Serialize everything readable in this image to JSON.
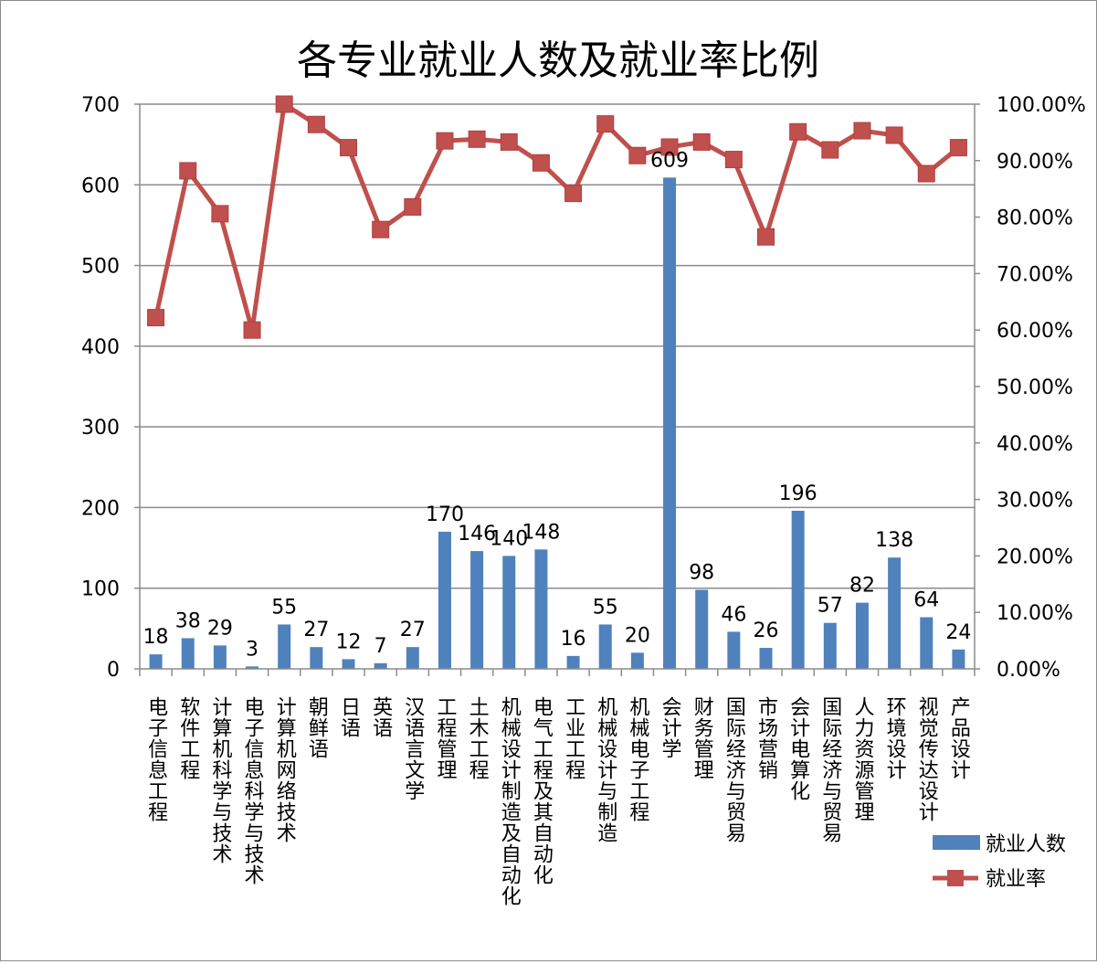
{
  "chart_data": {
    "type": "bar",
    "title": "各专业就业人数及就业率比例",
    "categories": [
      "电子信息工程",
      "软件工程",
      "计算机科学与技术",
      "电子信息科学与技术",
      "计算机网络技术",
      "朝鲜语",
      "日语",
      "英语",
      "汉语言文学",
      "工程管理",
      "土木工程",
      "机械设计制造及自动化",
      "电气工程及其自动化",
      "工业工程",
      "机械设计与制造",
      "机械电子工程",
      "会计学",
      "财务管理",
      "国际经济与贸易",
      "市场营销",
      "会计电算化",
      "国际经济与贸易",
      "人力资源管理",
      "环境设计",
      "视觉传达设计",
      "产品设计"
    ],
    "series": [
      {
        "name": "就业人数",
        "type": "bar",
        "axis": "left",
        "color": "#4f81bd",
        "values": [
          18,
          38,
          29,
          3,
          55,
          27,
          12,
          7,
          27,
          170,
          146,
          140,
          148,
          16,
          55,
          20,
          609,
          98,
          46,
          26,
          196,
          57,
          82,
          138,
          64,
          24
        ]
      },
      {
        "name": "就业率",
        "type": "line",
        "axis": "right",
        "color": "#c0504d",
        "values": [
          62.2,
          88.2,
          80.6,
          60.0,
          100.0,
          96.4,
          92.3,
          77.8,
          81.8,
          93.5,
          93.8,
          93.3,
          89.6,
          84.2,
          96.5,
          90.9,
          92.4,
          93.3,
          90.2,
          76.5,
          95.1,
          91.9,
          95.3,
          94.5,
          87.7,
          92.3
        ]
      }
    ],
    "yleft": {
      "ylim": [
        0,
        700
      ],
      "ticks": [
        "0",
        "100",
        "200",
        "300",
        "400",
        "500",
        "600",
        "700"
      ]
    },
    "yright": {
      "ylim": [
        0,
        100
      ],
      "ticks": [
        "0.00%",
        "10.00%",
        "20.00%",
        "30.00%",
        "40.00%",
        "50.00%",
        "60.00%",
        "70.00%",
        "80.00%",
        "90.00%",
        "100.00%"
      ]
    },
    "data_labels": [
      "18",
      "38",
      "29",
      "3",
      "55",
      "27",
      "12",
      "7",
      "27",
      "170",
      "146",
      "140",
      "148",
      "16",
      "55",
      "20",
      "609",
      "98",
      "46",
      "26",
      "196",
      "57",
      "82",
      "138",
      "64",
      "24"
    ],
    "legend": {
      "placement": "right",
      "entries": [
        "就业人数",
        "就业率"
      ]
    },
    "grid": true
  }
}
